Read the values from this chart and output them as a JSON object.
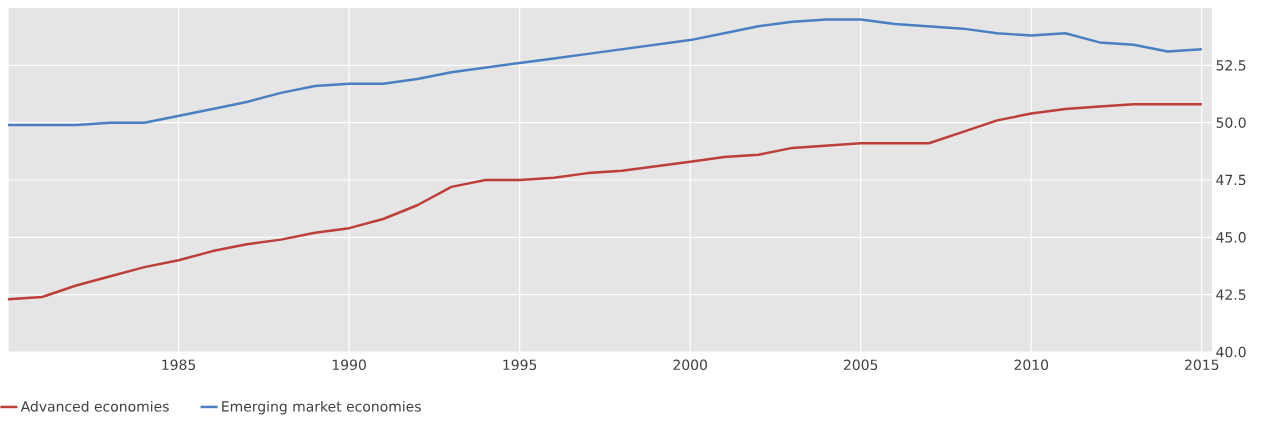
{
  "chart_data": {
    "type": "line",
    "x": [
      1980,
      1981,
      1982,
      1983,
      1984,
      1985,
      1986,
      1987,
      1988,
      1989,
      1990,
      1991,
      1992,
      1993,
      1994,
      1995,
      1996,
      1997,
      1998,
      1999,
      2000,
      2001,
      2002,
      2003,
      2004,
      2005,
      2006,
      2007,
      2008,
      2009,
      2010,
      2011,
      2012,
      2013,
      2014,
      2015
    ],
    "series": [
      {
        "name": "Advanced economies",
        "color": "#bd3f3a",
        "values": [
          42.3,
          42.4,
          42.9,
          43.3,
          43.7,
          44.0,
          44.4,
          44.7,
          44.9,
          45.2,
          45.4,
          45.8,
          46.4,
          47.2,
          47.5,
          47.5,
          47.6,
          47.8,
          47.9,
          48.1,
          48.3,
          48.5,
          48.6,
          48.9,
          49.0,
          49.1,
          49.1,
          49.1,
          49.6,
          50.1,
          50.4,
          50.6,
          50.7,
          50.8,
          50.8,
          50.8
        ]
      },
      {
        "name": "Emerging market economies",
        "color": "#4a7fc1",
        "values": [
          49.9,
          49.9,
          49.9,
          50.0,
          50.0,
          50.3,
          50.6,
          50.9,
          51.3,
          51.6,
          51.7,
          51.7,
          51.9,
          52.2,
          52.4,
          52.6,
          52.8,
          53.0,
          53.2,
          53.4,
          53.6,
          53.9,
          54.2,
          54.4,
          54.5,
          54.5,
          54.3,
          54.2,
          54.1,
          53.9,
          53.8,
          53.9,
          53.5,
          53.4,
          53.1,
          53.2
        ]
      }
    ],
    "xlim": [
      1980,
      2015.3
    ],
    "xticks": [
      {
        "value": 1980,
        "label": null
      },
      1985,
      1990,
      1995,
      2000,
      2005,
      2010,
      2015
    ],
    "ylim": [
      40,
      55
    ],
    "yticks": [
      {
        "value": 40,
        "label": "40.0"
      },
      {
        "value": 42.5,
        "label": "42.5"
      },
      {
        "value": 45,
        "label": "45.0"
      },
      {
        "value": 47.5,
        "label": "47.5"
      },
      {
        "value": 50,
        "label": "50.0"
      },
      {
        "value": 52.5,
        "label": "52.5"
      }
    ],
    "grid": true,
    "legend": "bottom left",
    "marker": "none",
    "line_style": "solid"
  }
}
